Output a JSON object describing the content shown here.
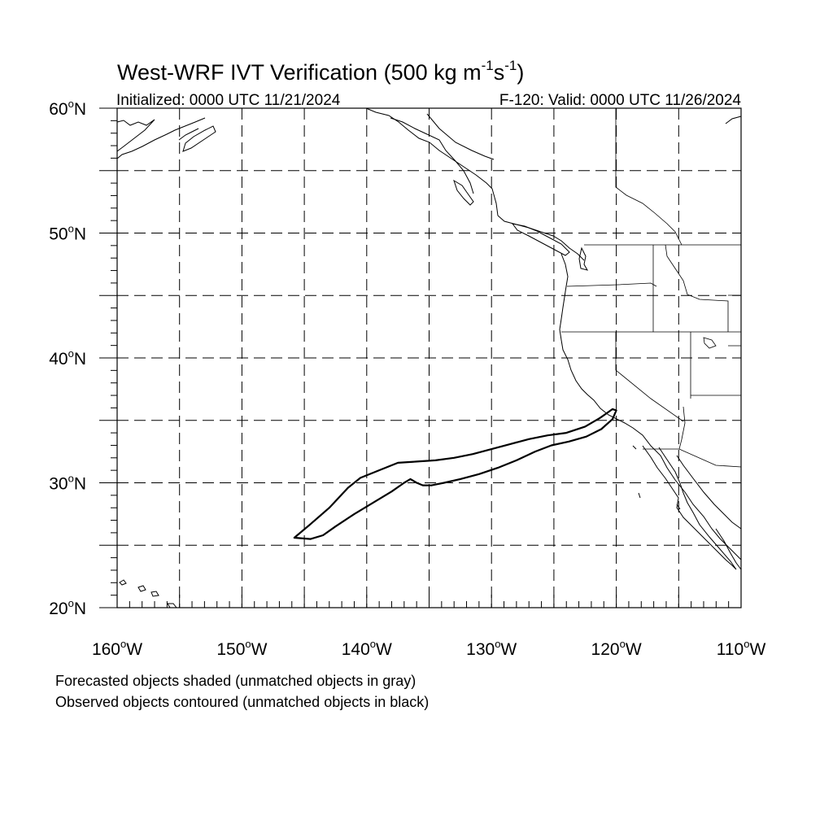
{
  "map": {
    "title": "West-WRF IVT Verification (500 kg m",
    "title_sup1": "-1",
    "title_mid": "s",
    "title_sup2": "-1",
    "title_end": ")",
    "init_label": "Initialized: 0000 UTC 11/21/2024",
    "valid_label": "F-120: Valid: 0000 UTC 11/26/2024",
    "lon_range": [
      -160,
      -110
    ],
    "lat_range": [
      20,
      60
    ],
    "lat_labels": [
      {
        "lat": 60,
        "deg": "60",
        "hemi": "N"
      },
      {
        "lat": 50,
        "deg": "50",
        "hemi": "N"
      },
      {
        "lat": 40,
        "deg": "40",
        "hemi": "N"
      },
      {
        "lat": 30,
        "deg": "30",
        "hemi": "N"
      },
      {
        "lat": 20,
        "deg": "20",
        "hemi": "N"
      }
    ],
    "lon_labels": [
      {
        "lon": -160,
        "deg": "160",
        "hemi": "W"
      },
      {
        "lon": -150,
        "deg": "150",
        "hemi": "W"
      },
      {
        "lon": -140,
        "deg": "140",
        "hemi": "W"
      },
      {
        "lon": -130,
        "deg": "130",
        "hemi": "W"
      },
      {
        "lon": -120,
        "deg": "120",
        "hemi": "W"
      },
      {
        "lon": -110,
        "deg": "110",
        "hemi": "W"
      }
    ],
    "caption_line1": "Forecasted objects shaded (unmatched objects in gray)",
    "caption_line2": "Observed objects contoured (unmatched objects in black)",
    "observed_object": {
      "color": "#000000",
      "outline_lonlat": [
        [
          -145.8,
          25.6
        ],
        [
          -144.5,
          26.7
        ],
        [
          -143.0,
          28.0
        ],
        [
          -141.5,
          29.6
        ],
        [
          -140.5,
          30.4
        ],
        [
          -139.0,
          31.0
        ],
        [
          -137.5,
          31.6
        ],
        [
          -136.0,
          31.7
        ],
        [
          -134.5,
          31.8
        ],
        [
          -133.0,
          32.0
        ],
        [
          -131.5,
          32.3
        ],
        [
          -130.0,
          32.7
        ],
        [
          -128.5,
          33.1
        ],
        [
          -127.0,
          33.5
        ],
        [
          -125.5,
          33.8
        ],
        [
          -124.0,
          34.0
        ],
        [
          -122.5,
          34.5
        ],
        [
          -121.3,
          35.2
        ],
        [
          -120.3,
          35.9
        ],
        [
          -120.0,
          35.8
        ],
        [
          -120.3,
          35.1
        ],
        [
          -121.2,
          34.3
        ],
        [
          -122.4,
          33.7
        ],
        [
          -123.8,
          33.3
        ],
        [
          -125.2,
          33.0
        ],
        [
          -126.5,
          32.5
        ],
        [
          -128.0,
          31.8
        ],
        [
          -129.5,
          31.2
        ],
        [
          -131.0,
          30.7
        ],
        [
          -132.5,
          30.3
        ],
        [
          -133.8,
          30.0
        ],
        [
          -134.8,
          29.8
        ],
        [
          -135.5,
          29.8
        ],
        [
          -136.0,
          30.0
        ],
        [
          -136.5,
          30.3
        ],
        [
          -137.0,
          30.0
        ],
        [
          -138.0,
          29.3
        ],
        [
          -139.5,
          28.4
        ],
        [
          -141.0,
          27.5
        ],
        [
          -142.5,
          26.5
        ],
        [
          -143.5,
          25.8
        ],
        [
          -144.5,
          25.5
        ],
        [
          -145.8,
          25.6
        ]
      ]
    }
  }
}
